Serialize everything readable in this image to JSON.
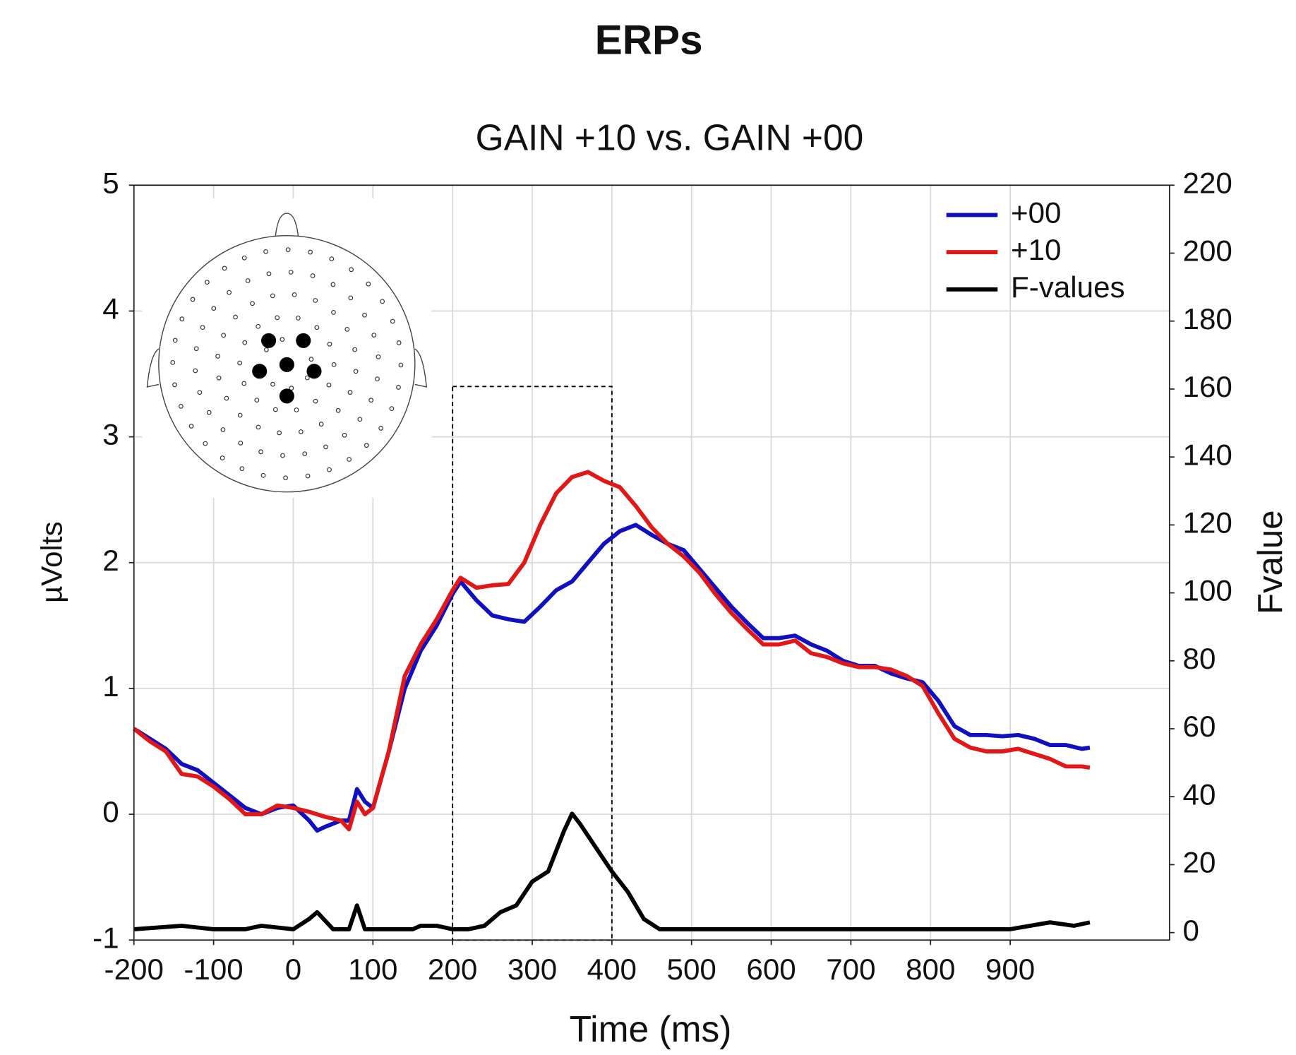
{
  "chart_data": {
    "type": "line",
    "title": "ERPs",
    "subtitle": "GAIN +10 vs. GAIN +00",
    "xlabel": "Time (ms)",
    "ylabel": "µVolts",
    "y2label": "Fvalue",
    "xlim": [
      -200,
      1100
    ],
    "xticks": [
      -200,
      -100,
      0,
      100,
      200,
      300,
      400,
      500,
      600,
      700,
      800,
      900
    ],
    "ylim": [
      -1,
      5
    ],
    "yticks": [
      -1,
      0,
      1,
      2,
      3,
      4,
      5
    ],
    "y2lim": [
      -2.2,
      220
    ],
    "y2ticks": [
      0,
      20,
      40,
      60,
      80,
      100,
      120,
      140,
      160,
      180,
      200,
      220
    ],
    "grid": true,
    "legend": "upper right",
    "highlight": {
      "x": [
        200,
        400
      ],
      "y": [
        -1,
        3.4
      ]
    },
    "series": [
      {
        "name": "+00",
        "color": "#1010c0",
        "x": [
          -200,
          -180,
          -160,
          -140,
          -120,
          -100,
          -80,
          -60,
          -40,
          -20,
          0,
          20,
          30,
          40,
          60,
          70,
          80,
          90,
          100,
          120,
          140,
          160,
          180,
          200,
          210,
          230,
          250,
          270,
          290,
          310,
          330,
          350,
          370,
          390,
          410,
          430,
          450,
          470,
          490,
          510,
          530,
          550,
          570,
          590,
          610,
          630,
          650,
          670,
          690,
          710,
          730,
          750,
          770,
          790,
          810,
          830,
          850,
          870,
          890,
          910,
          930,
          950,
          970,
          990,
          1000
        ],
        "values": [
          0.68,
          0.6,
          0.52,
          0.4,
          0.35,
          0.25,
          0.15,
          0.05,
          0,
          0.05,
          0.07,
          -0.05,
          -0.13,
          -0.1,
          -0.05,
          -0.05,
          0.2,
          0.1,
          0.05,
          0.5,
          1.0,
          1.3,
          1.5,
          1.75,
          1.85,
          1.7,
          1.58,
          1.55,
          1.53,
          1.65,
          1.78,
          1.85,
          2.0,
          2.15,
          2.25,
          2.3,
          2.22,
          2.15,
          2.1,
          1.95,
          1.8,
          1.65,
          1.52,
          1.4,
          1.4,
          1.42,
          1.35,
          1.3,
          1.22,
          1.18,
          1.18,
          1.12,
          1.08,
          1.05,
          0.9,
          0.7,
          0.63,
          0.63,
          0.62,
          0.63,
          0.6,
          0.55,
          0.55,
          0.52,
          0.53
        ]
      },
      {
        "name": "+10",
        "color": "#e01818",
        "x": [
          -200,
          -180,
          -160,
          -140,
          -120,
          -100,
          -80,
          -60,
          -40,
          -20,
          0,
          20,
          40,
          60,
          70,
          80,
          90,
          100,
          120,
          140,
          160,
          180,
          200,
          210,
          230,
          250,
          270,
          290,
          310,
          330,
          350,
          370,
          390,
          410,
          430,
          450,
          470,
          490,
          510,
          530,
          550,
          570,
          590,
          610,
          630,
          650,
          670,
          690,
          710,
          730,
          750,
          770,
          790,
          810,
          830,
          850,
          870,
          890,
          910,
          930,
          950,
          970,
          990,
          1000
        ],
        "values": [
          0.68,
          0.58,
          0.5,
          0.32,
          0.3,
          0.22,
          0.12,
          0,
          0,
          0.07,
          0.05,
          0.02,
          -0.02,
          -0.05,
          -0.12,
          0.1,
          0,
          0.05,
          0.5,
          1.1,
          1.35,
          1.55,
          1.78,
          1.88,
          1.8,
          1.82,
          1.83,
          2.0,
          2.3,
          2.55,
          2.68,
          2.72,
          2.65,
          2.6,
          2.45,
          2.28,
          2.15,
          2.05,
          1.92,
          1.75,
          1.6,
          1.47,
          1.35,
          1.35,
          1.38,
          1.28,
          1.25,
          1.2,
          1.17,
          1.17,
          1.15,
          1.1,
          1.02,
          0.8,
          0.6,
          0.53,
          0.5,
          0.5,
          0.52,
          0.48,
          0.44,
          0.38,
          0.38,
          0.37
        ]
      },
      {
        "name": "F-values",
        "color": "#000000",
        "axis": "y2",
        "x": [
          -200,
          -140,
          -100,
          -60,
          -40,
          0,
          20,
          30,
          50,
          70,
          80,
          90,
          100,
          150,
          160,
          180,
          200,
          220,
          240,
          260,
          280,
          300,
          320,
          340,
          350,
          360,
          380,
          400,
          420,
          440,
          460,
          500,
          600,
          700,
          800,
          900,
          950,
          980,
          1000
        ],
        "values": [
          1,
          2,
          1,
          1,
          2,
          1,
          4,
          6,
          1,
          1,
          8,
          1,
          1,
          1,
          2,
          2,
          1,
          1,
          2,
          6,
          8,
          15,
          18,
          30,
          35,
          32,
          25,
          18,
          12,
          4,
          1,
          1,
          1,
          1,
          1,
          1,
          3,
          2,
          3
        ]
      }
    ]
  }
}
